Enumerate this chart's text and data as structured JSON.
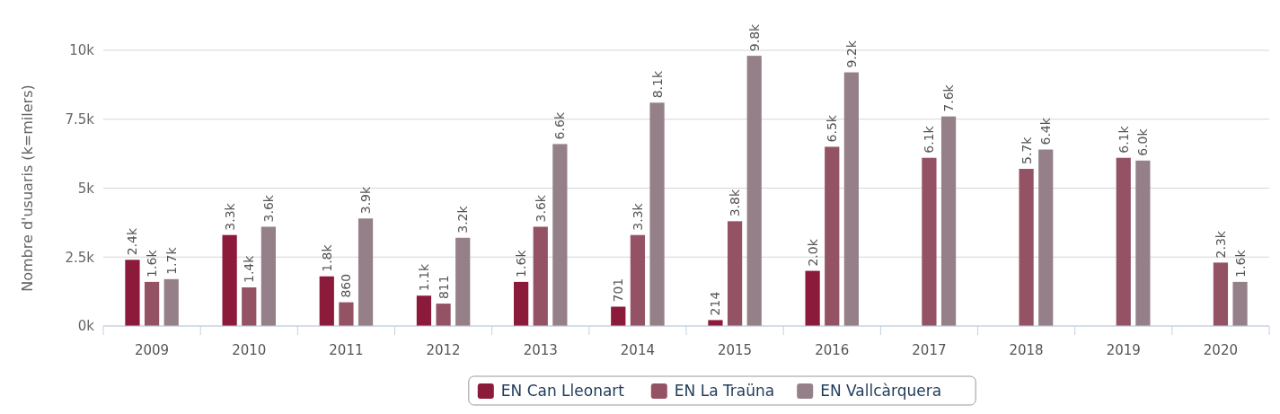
{
  "chart_data": {
    "type": "bar",
    "ylabel": "Nombre d'usuaris (k=milers)",
    "categories": [
      "2009",
      "2010",
      "2011",
      "2012",
      "2013",
      "2014",
      "2015",
      "2016",
      "2017",
      "2018",
      "2019",
      "2020"
    ],
    "series": [
      {
        "name": "EN Can Lleonart",
        "color": "#8c1a3b",
        "values": [
          2400,
          3300,
          1800,
          1100,
          1600,
          701,
          214,
          2000,
          null,
          null,
          null,
          null
        ],
        "value_labels": [
          "2.4k",
          "3.3k",
          "1.8k",
          "1.1k",
          "1.6k",
          "701",
          "214",
          "2.0k",
          null,
          null,
          null,
          null
        ]
      },
      {
        "name": "EN La Traüna",
        "color": "#935365",
        "values": [
          1600,
          1400,
          860,
          811,
          3600,
          3300,
          3800,
          6500,
          6100,
          5700,
          6100,
          2300
        ],
        "value_labels": [
          "1.6k",
          "1.4k",
          "860",
          "811",
          "3.6k",
          "3.3k",
          "3.8k",
          "6.5k",
          "6.1k",
          "5.7k",
          "6.1k",
          "2.3k"
        ]
      },
      {
        "name": "EN Vallcàrquera",
        "color": "#95808a",
        "values": [
          1700,
          3600,
          3900,
          3200,
          6600,
          8100,
          9800,
          9200,
          7600,
          6400,
          6000,
          1600
        ],
        "value_labels": [
          "1.7k",
          "3.6k",
          "3.9k",
          "3.2k",
          "6.6k",
          "8.1k",
          "9.8k",
          "9.2k",
          "7.6k",
          "6.4k",
          "6.0k",
          "1.6k"
        ]
      }
    ],
    "ylim": [
      0,
      10000
    ],
    "yticks": [
      {
        "value": 0,
        "label": "0k"
      },
      {
        "value": 2500,
        "label": "2.5k"
      },
      {
        "value": 5000,
        "label": "5k"
      },
      {
        "value": 7500,
        "label": "7.5k"
      },
      {
        "value": 10000,
        "label": "10k"
      }
    ],
    "grid": "y",
    "legend": "bottom"
  }
}
